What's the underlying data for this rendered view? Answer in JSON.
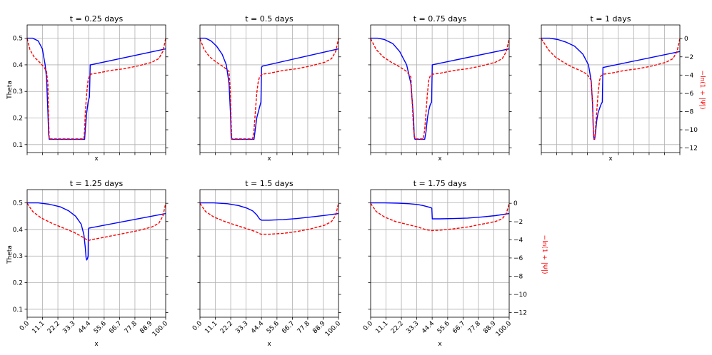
{
  "figure": {
    "ylabel_left": "Theta",
    "ylabel_right": "−ln(1 + |Ψ|)",
    "xlabel": "x"
  },
  "chart_data": [
    {
      "type": "line",
      "title": "t = 0.25 days",
      "title_math": "t",
      "xlim": [
        0,
        100
      ],
      "ylim_left": [
        0.07,
        0.55
      ],
      "ylim_right": [
        -12.5,
        1.5
      ],
      "xticks": [
        "0.0",
        "11.1",
        "22.2",
        "33.3",
        "44.4",
        "55.6",
        "66.7",
        "77.8",
        "88.9",
        "100.0"
      ],
      "yticks_left": [
        "0.1",
        "0.2",
        "0.3",
        "0.4",
        "0.5"
      ],
      "yticks_right": [
        "0",
        "−2",
        "−4",
        "−6",
        "−8",
        "−10",
        "−12"
      ],
      "show_left_ticks": true,
      "show_right_ticks": false,
      "show_x_ticks": false,
      "series": [
        {
          "axis": "left",
          "color": "#0000ff",
          "dash": "solid",
          "x": [
            0,
            4,
            8,
            11,
            13,
            14,
            15,
            15.5,
            16,
            16.5,
            17,
            30,
            41.5,
            42,
            43,
            44,
            45,
            45.5,
            46,
            100
          ],
          "y": [
            0.5,
            0.5,
            0.49,
            0.46,
            0.4,
            0.35,
            0.22,
            0.14,
            0.12,
            0.12,
            0.12,
            0.12,
            0.12,
            0.16,
            0.22,
            0.26,
            0.28,
            0.4,
            0.4,
            0.46
          ]
        },
        {
          "axis": "right",
          "color": "#ff0000",
          "dash": "dashed",
          "x": [
            0,
            2,
            5,
            9,
            12,
            14,
            15,
            15.5,
            16,
            16.5,
            17,
            30,
            41,
            41.5,
            42,
            43,
            44,
            45,
            46,
            50,
            60,
            70,
            80,
            90,
            95,
            98,
            100
          ],
          "y": [
            0,
            -1.2,
            -2.0,
            -2.6,
            -3.1,
            -3.6,
            -5,
            -9,
            -11,
            -11,
            -11,
            -11,
            -11,
            -10,
            -8,
            -6,
            -4.5,
            -4.1,
            -3.9,
            -3.8,
            -3.5,
            -3.3,
            -3.0,
            -2.6,
            -2.2,
            -1.4,
            0
          ]
        }
      ]
    },
    {
      "type": "line",
      "title": "t = 0.5 days",
      "title_math": "t",
      "xlim": [
        0,
        100
      ],
      "ylim_left": [
        0.07,
        0.55
      ],
      "ylim_right": [
        -12.5,
        1.5
      ],
      "xticks": [
        "0.0",
        "11.1",
        "22.2",
        "33.3",
        "44.4",
        "55.6",
        "66.7",
        "77.8",
        "88.9",
        "100.0"
      ],
      "yticks_left": [
        "0.1",
        "0.2",
        "0.3",
        "0.4",
        "0.5"
      ],
      "yticks_right": [
        "0",
        "−2",
        "−4",
        "−6",
        "−8",
        "−10",
        "−12"
      ],
      "show_left_ticks": false,
      "show_right_ticks": false,
      "show_x_ticks": false,
      "series": [
        {
          "axis": "left",
          "color": "#0000ff",
          "dash": "solid",
          "x": [
            0,
            4,
            8,
            12,
            16,
            19,
            21,
            22,
            22.5,
            23,
            23.5,
            30,
            39,
            40,
            41,
            43,
            44,
            44.5,
            45,
            100
          ],
          "y": [
            0.5,
            0.5,
            0.49,
            0.47,
            0.44,
            0.4,
            0.33,
            0.22,
            0.14,
            0.12,
            0.12,
            0.12,
            0.12,
            0.16,
            0.2,
            0.24,
            0.26,
            0.39,
            0.395,
            0.46
          ]
        },
        {
          "axis": "right",
          "color": "#ff0000",
          "dash": "dashed",
          "x": [
            0,
            3,
            7,
            12,
            17,
            21,
            22,
            22.5,
            23,
            23.5,
            30,
            38,
            39,
            40,
            41,
            42,
            43,
            45,
            50,
            60,
            70,
            80,
            90,
            95,
            98,
            100
          ],
          "y": [
            0,
            -1.2,
            -2.0,
            -2.6,
            -3.1,
            -3.6,
            -6,
            -9,
            -11,
            -11,
            -11,
            -11,
            -10,
            -8,
            -6,
            -4.8,
            -4.2,
            -3.9,
            -3.8,
            -3.5,
            -3.3,
            -3.0,
            -2.6,
            -2.2,
            -1.4,
            0
          ]
        }
      ]
    },
    {
      "type": "line",
      "title": "t = 0.75 days",
      "title_math": "t",
      "xlim": [
        0,
        100
      ],
      "ylim_left": [
        0.07,
        0.55
      ],
      "ylim_right": [
        -12.5,
        1.5
      ],
      "xticks": [
        "0.0",
        "11.1",
        "22.2",
        "33.3",
        "44.4",
        "55.6",
        "66.7",
        "77.8",
        "88.9",
        "100.0"
      ],
      "yticks_left": [
        "0.1",
        "0.2",
        "0.3",
        "0.4",
        "0.5"
      ],
      "yticks_right": [
        "0",
        "−2",
        "−4",
        "−6",
        "−8",
        "−10",
        "−12"
      ],
      "show_left_ticks": false,
      "show_right_ticks": false,
      "show_x_ticks": false,
      "series": [
        {
          "axis": "left",
          "color": "#0000ff",
          "dash": "solid",
          "x": [
            0,
            5,
            10,
            16,
            21,
            26,
            29,
            31,
            31.5,
            32,
            32.5,
            39,
            40,
            41,
            42,
            43,
            44,
            44.5,
            100
          ],
          "y": [
            0.5,
            0.5,
            0.495,
            0.48,
            0.45,
            0.4,
            0.33,
            0.2,
            0.13,
            0.12,
            0.12,
            0.12,
            0.15,
            0.2,
            0.23,
            0.25,
            0.26,
            0.4,
            0.46
          ]
        },
        {
          "axis": "right",
          "color": "#ff0000",
          "dash": "dashed",
          "x": [
            0,
            4,
            9,
            15,
            21,
            26,
            29,
            30,
            31,
            32,
            38,
            39,
            40,
            41,
            42,
            43,
            45,
            50,
            60,
            70,
            80,
            90,
            95,
            98,
            100
          ],
          "y": [
            0,
            -1.2,
            -2.0,
            -2.6,
            -3.1,
            -3.6,
            -4.2,
            -7,
            -10,
            -11,
            -11,
            -10,
            -8,
            -6,
            -4.5,
            -4.1,
            -3.9,
            -3.8,
            -3.5,
            -3.3,
            -3.0,
            -2.6,
            -2.2,
            -1.4,
            0
          ]
        }
      ]
    },
    {
      "type": "line",
      "title": "t = 1 days",
      "title_math": "t",
      "xlim": [
        0,
        100
      ],
      "ylim_left": [
        0.07,
        0.55
      ],
      "ylim_right": [
        -12.5,
        1.5
      ],
      "xticks": [
        "0.0",
        "11.1",
        "22.2",
        "33.3",
        "44.4",
        "55.6",
        "66.7",
        "77.8",
        "88.9",
        "100.0"
      ],
      "yticks_left": [
        "0.1",
        "0.2",
        "0.3",
        "0.4",
        "0.5"
      ],
      "yticks_right": [
        "0",
        "−2",
        "−4",
        "−6",
        "−8",
        "−10",
        "−12"
      ],
      "show_left_ticks": false,
      "show_right_ticks": true,
      "show_x_ticks": false,
      "series": [
        {
          "axis": "left",
          "color": "#0000ff",
          "dash": "solid",
          "x": [
            0,
            6,
            12,
            18,
            24,
            30,
            34,
            36,
            37,
            37.5,
            38,
            38.5,
            39,
            40,
            41,
            43,
            44,
            44.5,
            100
          ],
          "y": [
            0.5,
            0.5,
            0.495,
            0.485,
            0.47,
            0.44,
            0.4,
            0.34,
            0.25,
            0.15,
            0.12,
            0.12,
            0.14,
            0.19,
            0.22,
            0.25,
            0.26,
            0.39,
            0.45
          ]
        },
        {
          "axis": "right",
          "color": "#ff0000",
          "dash": "dashed",
          "x": [
            0,
            5,
            10,
            16,
            22,
            28,
            33,
            36,
            37,
            37.5,
            38,
            38.5,
            39,
            40,
            41,
            42,
            43,
            45,
            50,
            60,
            70,
            80,
            90,
            95,
            98,
            100
          ],
          "y": [
            0,
            -1.2,
            -2.0,
            -2.6,
            -3.1,
            -3.5,
            -3.9,
            -4.6,
            -7,
            -10,
            -11,
            -11,
            -10,
            -8,
            -6,
            -4.6,
            -4.1,
            -3.9,
            -3.8,
            -3.5,
            -3.3,
            -3.0,
            -2.6,
            -2.2,
            -1.4,
            0
          ]
        }
      ]
    },
    {
      "type": "line",
      "title": "t = 1.25 days",
      "title_math": "t",
      "xlim": [
        0,
        100
      ],
      "ylim_left": [
        0.07,
        0.55
      ],
      "ylim_right": [
        -12.5,
        1.5
      ],
      "xticks": [
        "0.0",
        "11.1",
        "22.2",
        "33.3",
        "44.4",
        "55.6",
        "66.7",
        "77.8",
        "88.9",
        "100.0"
      ],
      "yticks_left": [
        "0.1",
        "0.2",
        "0.3",
        "0.4",
        "0.5"
      ],
      "yticks_right": [
        "0",
        "−2",
        "−4",
        "−6",
        "−8",
        "−10",
        "−12"
      ],
      "show_left_ticks": true,
      "show_right_ticks": false,
      "show_x_ticks": true,
      "series": [
        {
          "axis": "left",
          "color": "#0000ff",
          "dash": "solid",
          "x": [
            0,
            8,
            16,
            24,
            30,
            35,
            39,
            41,
            42,
            42.5,
            43,
            43.5,
            44,
            44.2,
            44.5,
            100
          ],
          "y": [
            0.5,
            0.5,
            0.495,
            0.485,
            0.47,
            0.45,
            0.42,
            0.38,
            0.33,
            0.295,
            0.285,
            0.29,
            0.3,
            0.4,
            0.405,
            0.46
          ]
        },
        {
          "axis": "right",
          "color": "#ff0000",
          "dash": "dashed",
          "x": [
            0,
            4,
            10,
            18,
            26,
            34,
            40,
            43,
            44,
            46,
            50,
            60,
            70,
            80,
            90,
            95,
            98,
            100
          ],
          "y": [
            0,
            -0.9,
            -1.6,
            -2.2,
            -2.7,
            -3.2,
            -3.7,
            -4.0,
            -4.1,
            -4.0,
            -3.9,
            -3.6,
            -3.3,
            -3.0,
            -2.6,
            -2.2,
            -1.4,
            0
          ]
        }
      ]
    },
    {
      "type": "line",
      "title": "t = 1.5 days",
      "title_math": "t",
      "xlim": [
        0,
        100
      ],
      "ylim_left": [
        0.07,
        0.55
      ],
      "ylim_right": [
        -12.5,
        1.5
      ],
      "xticks": [
        "0.0",
        "11.1",
        "22.2",
        "33.3",
        "44.4",
        "55.6",
        "66.7",
        "77.8",
        "88.9",
        "100.0"
      ],
      "yticks_left": [
        "0.1",
        "0.2",
        "0.3",
        "0.4",
        "0.5"
      ],
      "yticks_right": [
        "0",
        "−2",
        "−4",
        "−6",
        "−8",
        "−10",
        "−12"
      ],
      "show_left_ticks": false,
      "show_right_ticks": false,
      "show_x_ticks": true,
      "series": [
        {
          "axis": "left",
          "color": "#0000ff",
          "dash": "solid",
          "x": [
            0,
            10,
            20,
            28,
            34,
            38,
            41,
            43,
            44.4,
            50,
            60,
            70,
            80,
            90,
            100
          ],
          "y": [
            0.5,
            0.5,
            0.497,
            0.49,
            0.48,
            0.47,
            0.455,
            0.44,
            0.435,
            0.435,
            0.437,
            0.441,
            0.447,
            0.453,
            0.46
          ]
        },
        {
          "axis": "right",
          "color": "#ff0000",
          "dash": "dashed",
          "x": [
            0,
            4,
            10,
            18,
            26,
            34,
            40,
            44,
            50,
            60,
            70,
            80,
            90,
            95,
            98,
            100
          ],
          "y": [
            0,
            -0.9,
            -1.5,
            -2.0,
            -2.4,
            -2.8,
            -3.1,
            -3.4,
            -3.4,
            -3.3,
            -3.1,
            -2.8,
            -2.4,
            -2.0,
            -1.3,
            0
          ]
        }
      ]
    },
    {
      "type": "line",
      "title": "t = 1.75 days",
      "title_math": "t",
      "xlim": [
        0,
        100
      ],
      "ylim_left": [
        0.07,
        0.55
      ],
      "ylim_right": [
        -12.5,
        1.5
      ],
      "xticks": [
        "0.0",
        "11.1",
        "22.2",
        "33.3",
        "44.4",
        "55.6",
        "66.7",
        "77.8",
        "88.9",
        "100.0"
      ],
      "yticks_left": [
        "0.1",
        "0.2",
        "0.3",
        "0.4",
        "0.5"
      ],
      "yticks_right": [
        "0",
        "−2",
        "−4",
        "−6",
        "−8",
        "−10",
        "−12"
      ],
      "show_left_ticks": false,
      "show_right_ticks": true,
      "show_x_ticks": true,
      "series": [
        {
          "axis": "left",
          "color": "#0000ff",
          "dash": "solid",
          "x": [
            0,
            10,
            20,
            28,
            34,
            38,
            41,
            43.5,
            44.2,
            44.5,
            50,
            60,
            70,
            80,
            90,
            100
          ],
          "y": [
            0.5,
            0.5,
            0.499,
            0.497,
            0.494,
            0.49,
            0.486,
            0.482,
            0.48,
            0.44,
            0.44,
            0.441,
            0.443,
            0.447,
            0.452,
            0.46
          ]
        },
        {
          "axis": "right",
          "color": "#ff0000",
          "dash": "dashed",
          "x": [
            0,
            4,
            10,
            18,
            26,
            34,
            40,
            44,
            50,
            60,
            70,
            80,
            90,
            95,
            98,
            100
          ],
          "y": [
            0,
            -0.9,
            -1.5,
            -2.0,
            -2.3,
            -2.6,
            -2.9,
            -3.0,
            -2.95,
            -2.8,
            -2.6,
            -2.3,
            -2.0,
            -1.7,
            -1.1,
            0
          ]
        }
      ]
    }
  ]
}
